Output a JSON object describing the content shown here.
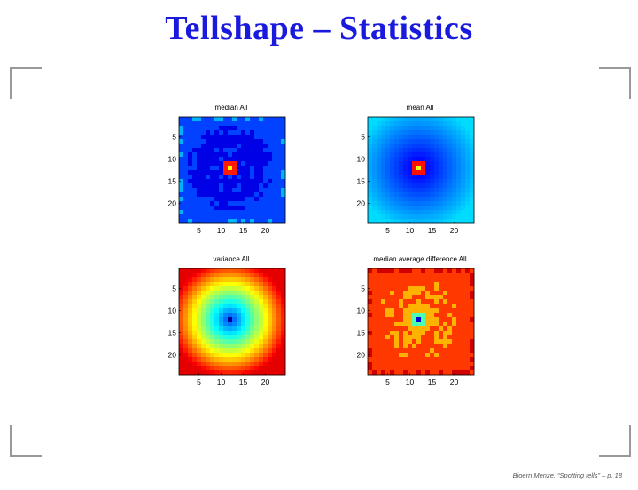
{
  "slide": {
    "title": "Tellshape – Statistics",
    "footer": "Bjoern Menze, “Spotting tells” – p. 18"
  },
  "chart_data": [
    {
      "type": "heatmap",
      "title": "median All",
      "x_ticks": [
        "5",
        "10",
        "15",
        "20"
      ],
      "y_ticks": [
        "5",
        "10",
        "15",
        "20"
      ],
      "xlim": [
        0.5,
        24.5
      ],
      "ylim": [
        0.5,
        24.5
      ],
      "grid": false,
      "colormap": "jet"
    },
    {
      "type": "heatmap",
      "title": "mean All",
      "x_ticks": [
        "5",
        "10",
        "15",
        "20"
      ],
      "y_ticks": [
        "5",
        "10",
        "15",
        "20"
      ],
      "xlim": [
        0.5,
        24.5
      ],
      "ylim": [
        0.5,
        24.5
      ],
      "grid": false,
      "colormap": "jet"
    },
    {
      "type": "heatmap",
      "title": "variance All",
      "x_ticks": [
        "5",
        "10",
        "15",
        "20"
      ],
      "y_ticks": [
        "5",
        "10",
        "15",
        "20"
      ],
      "xlim": [
        0.5,
        24.5
      ],
      "ylim": [
        0.5,
        24.5
      ],
      "grid": false,
      "colormap": "jet"
    },
    {
      "type": "heatmap",
      "title": "median average difference All",
      "x_ticks": [
        "5",
        "10",
        "15",
        "20"
      ],
      "y_ticks": [
        "5",
        "10",
        "15",
        "20"
      ],
      "xlim": [
        0.5,
        24.5
      ],
      "ylim": [
        0.5,
        24.5
      ],
      "grid": false,
      "colormap": "jet"
    }
  ]
}
